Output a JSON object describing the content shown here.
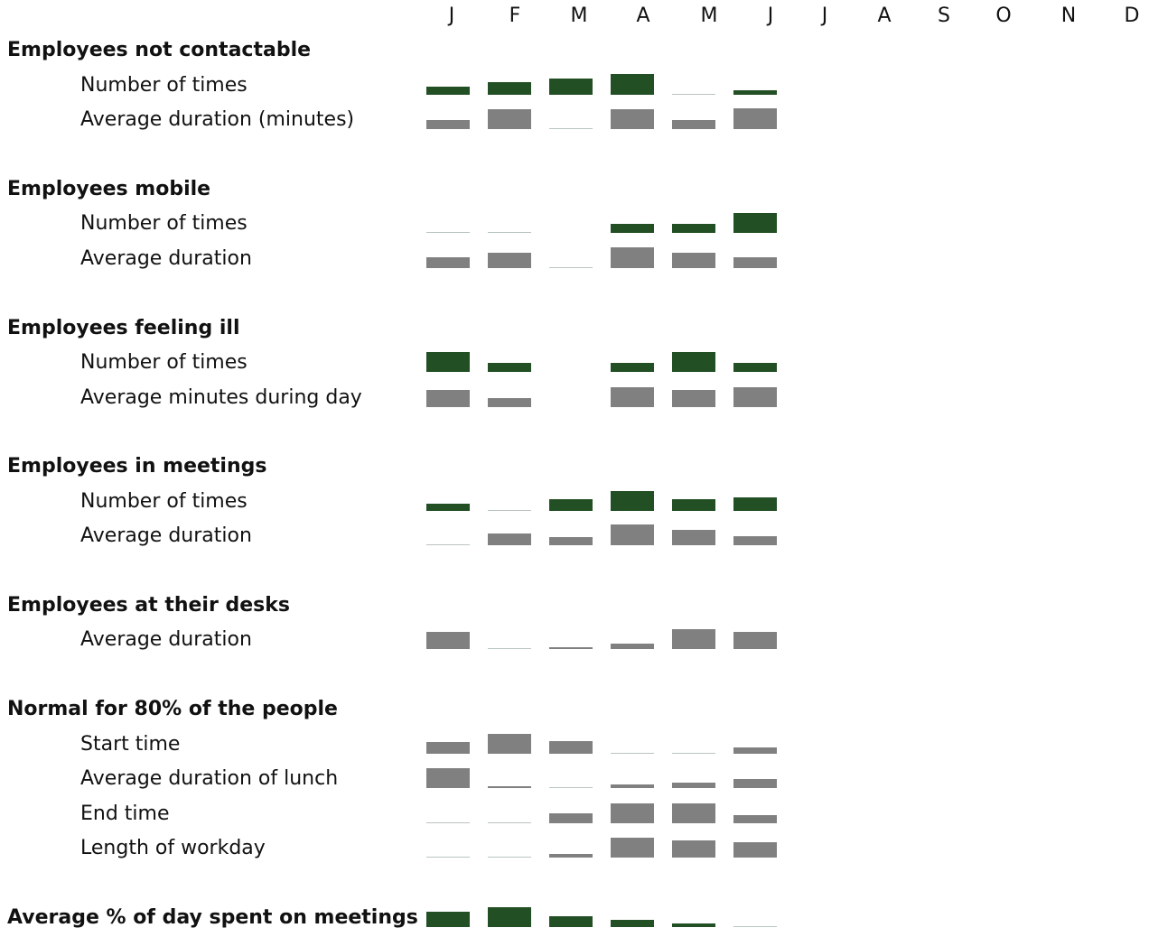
{
  "chart_data": {
    "type": "bar",
    "ylim": [
      0,
      25
    ],
    "months": [
      "J",
      "F",
      "M",
      "A",
      "M",
      "J",
      "J",
      "A",
      "S",
      "O",
      "N",
      "D"
    ],
    "groups": [
      {
        "title": "Employees not contactable",
        "rows": [
          {
            "label": "Number of times",
            "color": "#234f24",
            "values": [
              9,
              14,
              18,
              23,
              0,
              5
            ]
          },
          {
            "label": "Average duration (minutes)",
            "color": "#808080",
            "values": [
              10,
              22,
              0,
              22,
              10,
              23
            ]
          }
        ]
      },
      {
        "title": "Employees mobile",
        "rows": [
          {
            "label": "Number of times",
            "color": "#234f24",
            "values": [
              0,
              0,
              null,
              10,
              10,
              22
            ]
          },
          {
            "label": "Average duration",
            "color": "#808080",
            "values": [
              12,
              17,
              0,
              23,
              17,
              12
            ]
          }
        ]
      },
      {
        "title": "Employees feeling ill",
        "rows": [
          {
            "label": "Number of times",
            "color": "#234f24",
            "values": [
              22,
              10,
              null,
              10,
              22,
              10
            ]
          },
          {
            "label": "Average minutes during day",
            "color": "#808080",
            "values": [
              19,
              10,
              null,
              22,
              19,
              22
            ]
          }
        ]
      },
      {
        "title": "Employees in meetings",
        "rows": [
          {
            "label": "Number of times",
            "color": "#234f24",
            "values": [
              8,
              0,
              13,
              22,
              13,
              15
            ]
          },
          {
            "label": "Average duration",
            "color": "#808080",
            "values": [
              0,
              13,
              9,
              23,
              17,
              10
            ]
          }
        ]
      },
      {
        "title": "Employees at their desks",
        "rows": [
          {
            "label": "Average duration",
            "color": "#808080",
            "values": [
              19,
              0,
              2,
              6,
              22,
              19
            ]
          }
        ]
      },
      {
        "title": "Normal for 80% of the people",
        "rows": [
          {
            "label": "Start time",
            "color": "#808080",
            "values": [
              13,
              22,
              14,
              0,
              0,
              7
            ]
          },
          {
            "label": "Average duration of lunch",
            "color": "#808080",
            "values": [
              22,
              2,
              0,
              4,
              6,
              10
            ]
          },
          {
            "label": "End time",
            "color": "#808080",
            "values": [
              0,
              0,
              11,
              22,
              22,
              9
            ]
          },
          {
            "label": "Length of workday",
            "color": "#808080",
            "values": [
              0,
              0,
              4,
              22,
              19,
              17
            ]
          }
        ]
      },
      {
        "title": "Average % of day spent on meetings",
        "color": "#234f24",
        "values": [
          17,
          22,
          12,
          8,
          4,
          0
        ]
      }
    ]
  }
}
